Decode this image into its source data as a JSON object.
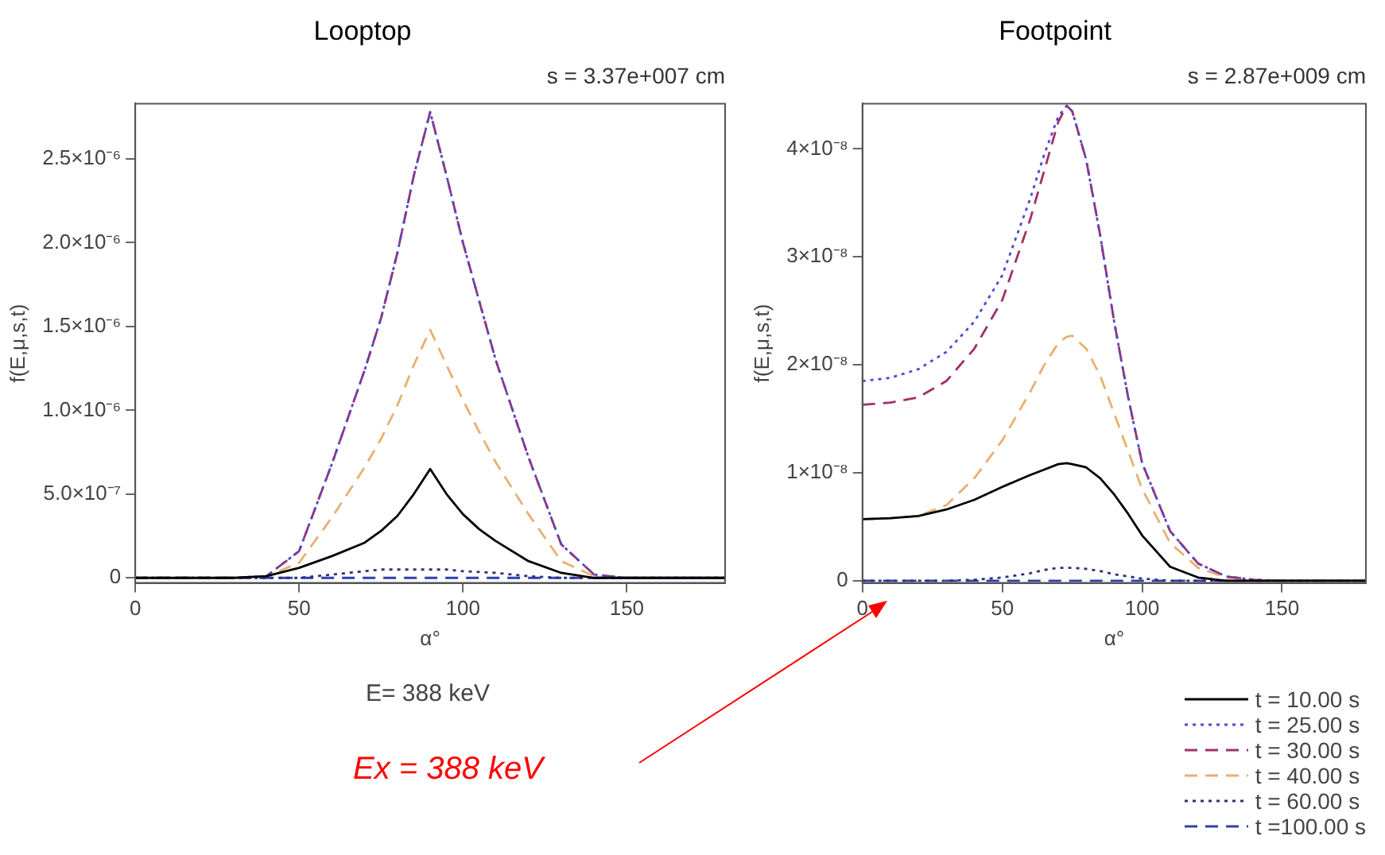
{
  "chart_data": [
    {
      "type": "line",
      "title": "Looptop",
      "subtitle": "s = 3.37e+007 cm",
      "xlabel": "α°",
      "ylabel": "f(E,μ,s,t)",
      "annotations": [
        "E= 388 keV"
      ],
      "x": [
        0,
        30,
        40,
        50,
        60,
        70,
        75,
        80,
        85,
        90,
        95,
        100,
        105,
        110,
        120,
        130,
        140,
        150,
        180
      ],
      "series": [
        {
          "color": "#000000",
          "line_style": "solid",
          "values": [
            0,
            0,
            1e-08,
            6e-08,
            1.3e-07,
            2.1e-07,
            2.8e-07,
            3.7e-07,
            5e-07,
            6.5e-07,
            5e-07,
            3.8e-07,
            2.9e-07,
            2.2e-07,
            1e-07,
            3e-08,
            0,
            0,
            0
          ]
        },
        {
          "color": "#4a4ad8",
          "line_style": "dotted",
          "values": [
            0,
            0,
            1e-08,
            1.6e-07,
            6.8e-07,
            1.24e-06,
            1.55e-06,
            1.94e-06,
            2.4e-06,
            2.78e-06,
            2.4e-06,
            2e-06,
            1.65e-06,
            1.3e-06,
            7.2e-07,
            2e-07,
            2e-08,
            0,
            0
          ]
        },
        {
          "color": "#a0306a",
          "line_style": "dashed",
          "values": [
            0,
            0,
            1e-08,
            1.6e-07,
            6.8e-07,
            1.24e-06,
            1.55e-06,
            1.94e-06,
            2.4e-06,
            2.78e-06,
            2.4e-06,
            2e-06,
            1.65e-06,
            1.3e-06,
            7.2e-07,
            2e-07,
            2e-08,
            0,
            0
          ]
        },
        {
          "color": "#e8b070",
          "line_style": "dashed",
          "values": [
            0,
            0,
            1e-08,
            9e-08,
            3.6e-07,
            6.6e-07,
            8.3e-07,
            1.03e-06,
            1.27e-06,
            1.48e-06,
            1.27e-06,
            1.06e-06,
            8.7e-07,
            6.9e-07,
            3.8e-07,
            1e-07,
            1e-08,
            0,
            0
          ]
        },
        {
          "color": "#303080",
          "line_style": "dotted",
          "values": [
            0,
            0,
            0,
            0,
            2e-08,
            4e-08,
            5e-08,
            5e-08,
            5e-08,
            5e-08,
            5e-08,
            4e-08,
            3.5e-08,
            3e-08,
            1e-08,
            0,
            0,
            0,
            0
          ]
        },
        {
          "color": "#3040a8",
          "line_style": "dashed",
          "values": [
            0,
            0,
            0,
            0,
            0,
            0,
            0,
            0,
            0,
            0,
            0,
            0,
            0,
            0,
            0,
            0,
            0,
            0,
            0
          ]
        }
      ],
      "xlim": [
        0,
        180
      ],
      "xticks": [
        0,
        50,
        100,
        150
      ],
      "ylim": [
        -3e-08,
        2.83e-06
      ],
      "yticks": [
        0,
        {
          "value": 5e-07,
          "label": "5.0×10⁻⁷"
        },
        {
          "value": 1e-06,
          "label": "1.0×10⁻⁶"
        },
        {
          "value": 1.5e-06,
          "label": "1.5×10⁻⁶"
        },
        {
          "value": 2e-06,
          "label": "2.0×10⁻⁶"
        },
        {
          "value": 2.5e-06,
          "label": "2.5×10⁻⁶"
        }
      ],
      "grid": false,
      "legend": false
    },
    {
      "type": "line",
      "title": "Footpoint",
      "subtitle": "s = 2.87e+009 cm",
      "xlabel": "α°",
      "ylabel": "f(E,μ,s,t)",
      "annotations": [
        "Ex = 388 keV"
      ],
      "x": [
        0,
        10,
        20,
        30,
        40,
        50,
        60,
        65,
        70,
        73,
        75,
        80,
        85,
        90,
        95,
        100,
        110,
        120,
        130,
        140,
        150,
        180
      ],
      "series": [
        {
          "name": "t = 10.00 s",
          "color": "#000000",
          "line_style": "solid",
          "values": [
            5.7e-09,
            5.8e-09,
            6e-09,
            6.6e-09,
            7.5e-09,
            8.7e-09,
            9.8e-09,
            1.03e-08,
            1.08e-08,
            1.09e-08,
            1.08e-08,
            1.05e-08,
            9.5e-09,
            8e-09,
            6.2e-09,
            4.2e-09,
            1.3e-09,
            3e-10,
            0,
            0,
            0,
            0
          ]
        },
        {
          "name": "t = 25.00 s",
          "color": "#4a4ad8",
          "line_style": "dotted",
          "values": [
            1.85e-08,
            1.88e-08,
            1.96e-08,
            2.12e-08,
            2.4e-08,
            2.83e-08,
            3.54e-08,
            3.95e-08,
            4.3e-08,
            4.4e-08,
            4.35e-08,
            3.9e-08,
            3.2e-08,
            2.4e-08,
            1.7e-08,
            1.09e-08,
            4.6e-09,
            1.6e-09,
            4e-10,
            1e-10,
            0,
            0
          ]
        },
        {
          "name": "t = 30.00 s",
          "color": "#a0306a",
          "line_style": "dashed",
          "values": [
            1.63e-08,
            1.65e-08,
            1.7e-08,
            1.85e-08,
            2.15e-08,
            2.6e-08,
            3.35e-08,
            3.8e-08,
            4.25e-08,
            4.4e-08,
            4.35e-08,
            3.9e-08,
            3.2e-08,
            2.4e-08,
            1.7e-08,
            1.09e-08,
            4.6e-09,
            1.6e-09,
            4e-10,
            1e-10,
            0,
            0
          ]
        },
        {
          "name": "t = 40.00 s",
          "color": "#e8b070",
          "line_style": "dashed",
          "values": [
            5.7e-09,
            5.8e-09,
            6e-09,
            7e-09,
            9.5e-09,
            1.3e-08,
            1.75e-08,
            2e-08,
            2.2e-08,
            2.26e-08,
            2.27e-08,
            2.15e-08,
            1.9e-08,
            1.55e-08,
            1.2e-08,
            8.5e-09,
            3.5e-09,
            1.2e-09,
            3e-10,
            0,
            0,
            0
          ]
        },
        {
          "name": "t = 60.00 s",
          "color": "#303080",
          "line_style": "dotted",
          "values": [
            0,
            0,
            0,
            0,
            1e-10,
            3e-10,
            7e-10,
            1e-09,
            1.2e-09,
            1.2e-09,
            1.2e-09,
            1.1e-09,
            9e-10,
            6e-10,
            4e-10,
            2e-10,
            0,
            0,
            0,
            0,
            0,
            0
          ]
        },
        {
          "name": "t =100.00 s",
          "color": "#3040a8",
          "line_style": "dashed",
          "values": [
            0,
            0,
            0,
            0,
            0,
            0,
            0,
            0,
            0,
            0,
            0,
            0,
            0,
            0,
            0,
            0,
            0,
            0,
            0,
            0,
            0,
            0
          ]
        }
      ],
      "xlim": [
        0,
        180
      ],
      "xticks": [
        0,
        50,
        100,
        150
      ],
      "ylim": [
        -2e-10,
        4.42e-08
      ],
      "yticks": [
        0,
        {
          "value": 1e-08,
          "label": "1×10⁻⁸"
        },
        {
          "value": 2e-08,
          "label": "2×10⁻⁸"
        },
        {
          "value": 3e-08,
          "label": "3×10⁻⁸"
        },
        {
          "value": 4e-08,
          "label": "4×10⁻⁸"
        }
      ],
      "grid": false,
      "legend": "bottom right"
    }
  ]
}
